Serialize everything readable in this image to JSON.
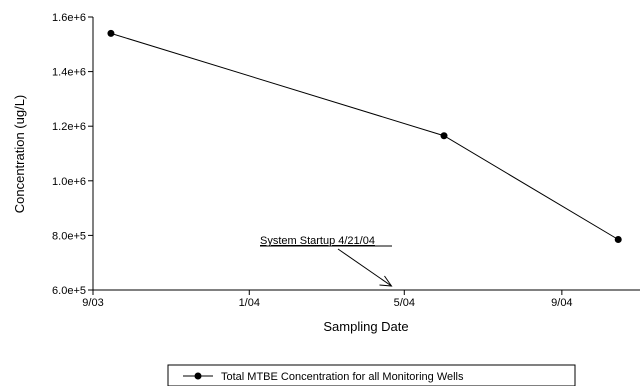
{
  "chart_data": {
    "type": "line",
    "x_dates": [
      "2003-09-15",
      "2004-06-01",
      "2004-10-15"
    ],
    "y_values": [
      1540000,
      1165000,
      785000
    ],
    "x_ticks": [
      {
        "date": "2003-09-01",
        "label": "9/03"
      },
      {
        "date": "2004-01-01",
        "label": "1/04"
      },
      {
        "date": "2004-05-01",
        "label": "5/04"
      },
      {
        "date": "2004-09-01",
        "label": "9/04"
      }
    ],
    "y_ticks": [
      {
        "value": 600000,
        "label": "6.0e+5"
      },
      {
        "value": 800000,
        "label": "8.0e+5"
      },
      {
        "value": 1000000,
        "label": "1.0e+6"
      },
      {
        "value": 1200000,
        "label": "1.2e+6"
      },
      {
        "value": 1400000,
        "label": "1.4e+6"
      },
      {
        "value": 1600000,
        "label": "1.6e+6"
      }
    ],
    "xlim": [
      "2003-09-01",
      "2004-11-01"
    ],
    "ylim": [
      600000,
      1600000
    ],
    "xlabel": "Sampling Date",
    "ylabel": "Concentration (ug/L)",
    "series": [
      {
        "name": "Total MTBE Concentration for all Monitoring Wells"
      }
    ],
    "annotation": {
      "text": "System Startup 4/21/04",
      "target_date": "2004-04-21"
    },
    "grid": false,
    "legend_position": "bottom-center",
    "line_color": "#000000"
  }
}
